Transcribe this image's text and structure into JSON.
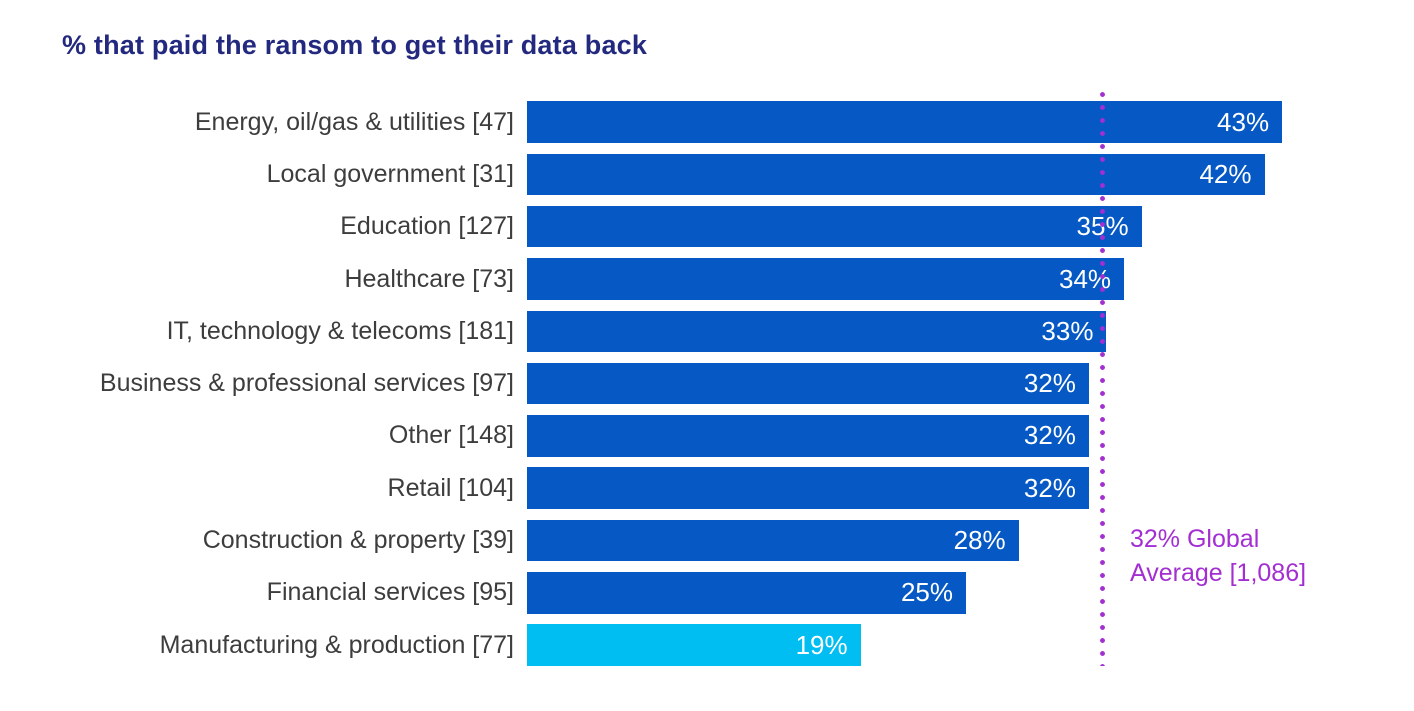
{
  "title": "% that paid the ransom to get their data back",
  "colors": {
    "bar": "#0659c4",
    "highlight_bar": "#00bdf2",
    "title_text": "#23297f",
    "label_text": "#3d3d3d",
    "value_text": "#ffffff",
    "average_line": "#a32ed2",
    "background": "#ffffff"
  },
  "average_annotation": {
    "label": "32% Global Average [1,086]",
    "value": 32
  },
  "chart_data": {
    "type": "bar",
    "orientation": "horizontal",
    "title": "% that paid the ransom to get their data back",
    "xlabel": "",
    "ylabel": "",
    "xlim": [
      0,
      50
    ],
    "grid": false,
    "categories": [
      "Energy, oil/gas & utilities [47]",
      "Local government [31]",
      "Education [127]",
      "Healthcare [73]",
      "IT, technology & telecoms [181]",
      "Business & professional services [97]",
      "Other [148]",
      "Retail [104]",
      "Construction & property [39]",
      "Financial services [95]",
      "Manufacturing & production [77]"
    ],
    "values": [
      43,
      42,
      35,
      34,
      33,
      32,
      32,
      32,
      28,
      25,
      19
    ],
    "value_labels": [
      "43%",
      "42%",
      "35%",
      "34%",
      "33%",
      "32%",
      "32%",
      "32%",
      "28%",
      "25%",
      "19%"
    ],
    "highlight_index": 10,
    "reference_line": {
      "value": 32,
      "label": "32% Global Average [1,086]",
      "style": "dotted"
    }
  }
}
